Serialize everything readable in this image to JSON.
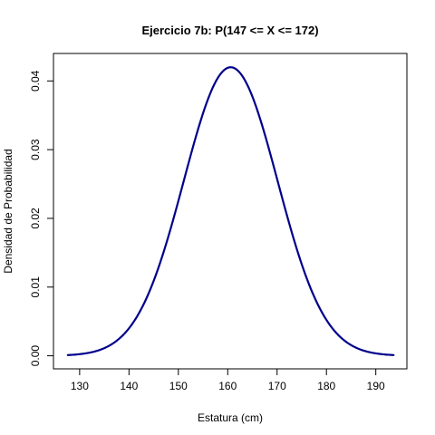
{
  "chart_data": {
    "type": "line",
    "title": "Ejercicio 7b: P(147 <= X <= 172)",
    "xlabel": "Estatura (cm)",
    "ylabel": "Densidad de Probabilidad",
    "xlim": [
      124.7,
      196.3
    ],
    "ylim": [
      -0.0019,
      0.044
    ],
    "x_ticks": [
      130,
      140,
      150,
      160,
      170,
      180,
      190
    ],
    "x_tick_labels": [
      "130",
      "140",
      "150",
      "160",
      "170",
      "180",
      "190"
    ],
    "y_ticks": [
      0.0,
      0.01,
      0.02,
      0.03,
      0.04
    ],
    "y_tick_labels": [
      "0.00",
      "0.01",
      "0.02",
      "0.03",
      "0.04"
    ],
    "grid": false,
    "line_color": "#00008B",
    "series": [
      {
        "distribution": "normal",
        "mean": 160.6,
        "sd": 9.5,
        "x_min": 127.6,
        "x_max": 193.6
      }
    ]
  }
}
